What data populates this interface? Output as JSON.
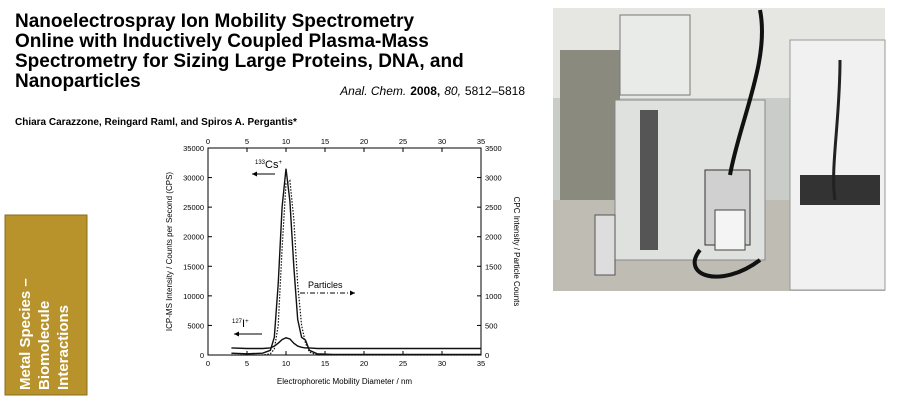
{
  "paper": {
    "title_lines": [
      "Nanoelectrospray Ion Mobility Spectrometry",
      "Online with Inductively Coupled Plasma-Mass",
      "Spectrometry for Sizing Large Proteins, DNA, and",
      "Nanoparticles"
    ],
    "citation": [
      {
        "text": "Anal. Chem.",
        "style": "italic"
      },
      {
        "text": "2008,",
        "style": "bold"
      },
      {
        "text": "80,",
        "style": "italic"
      },
      {
        "text": "5812–5818",
        "style": "normal"
      }
    ],
    "authors": "Chiara Carazzone, Reingard Raml, and Spiros A. Pergantis*"
  },
  "sidebar": {
    "lines": [
      "Metal Species –",
      "Biomolecule",
      "Interactions"
    ]
  },
  "chart_data": {
    "type": "line",
    "x_label": "Electrophoretic Mobility Diameter / nm",
    "y_label": "ICP-MS Intensity / Counts per Second (CPS)",
    "y2_label": "CPC Intensity / Particle Counts",
    "x": [
      3,
      5,
      7,
      8,
      8.5,
      9,
      9.5,
      10,
      10.5,
      11,
      11.5,
      12,
      12.5,
      13,
      14,
      16,
      20,
      25,
      30,
      35
    ],
    "series": [
      {
        "color": "#111111",
        "style": "solid",
        "values": [
          300,
          200,
          300,
          800,
          3000,
          12000,
          25000,
          31500,
          26000,
          15000,
          6000,
          3000,
          2500,
          800,
          200,
          100,
          100,
          100,
          100,
          100
        ]
      },
      {
        "color": "#111111",
        "style": "solid",
        "values": [
          1200,
          1100,
          1100,
          1200,
          1500,
          2000,
          2600,
          2900,
          2700,
          2000,
          1500,
          1300,
          1200,
          1200,
          1100,
          1100,
          1100,
          1100,
          1100,
          1100
        ]
      },
      {
        "color": "#111111",
        "style": "dotted",
        "axis": "y2",
        "values": [
          0,
          0,
          0,
          20,
          100,
          500,
          1800,
          2900,
          2950,
          2300,
          1200,
          500,
          200,
          50,
          0,
          0,
          0,
          0,
          0,
          0
        ]
      }
    ],
    "annotations": [
      {
        "mass": "133",
        "label": "Cs",
        "charge": "+"
      },
      {
        "mass": "127",
        "label": "I",
        "charge": "+"
      },
      {
        "label": "Particles"
      }
    ],
    "xlim": [
      0,
      35
    ],
    "xticks": [
      0,
      5,
      10,
      15,
      20,
      25,
      30,
      35
    ],
    "ylim": [
      0,
      35000
    ],
    "yticks": [
      0,
      5000,
      10000,
      15000,
      20000,
      25000,
      30000,
      35000
    ],
    "y2lim": [
      0,
      3500
    ],
    "y2ticks": [
      0,
      500,
      1000,
      1500,
      2000,
      2500,
      3000,
      3500
    ]
  }
}
